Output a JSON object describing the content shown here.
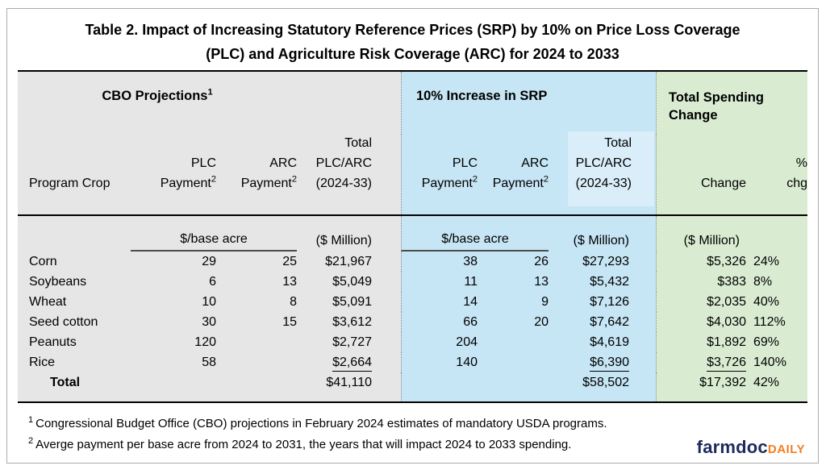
{
  "title": {
    "line1": "Table 2. Impact of Increasing Statutory Reference Prices (SRP) by 10% on Price Loss Coverage",
    "line2": "(PLC) and Agriculture Risk Coverage (ARC) for 2024 to 2033"
  },
  "sections": {
    "cbo_title": "CBO Projections",
    "cbo_sup": "1",
    "srp_title": "10% Increase in SRP",
    "change_title_line1": "Total Spending",
    "change_title_line2": "Change"
  },
  "header": {
    "program_crop": "Program Crop",
    "plc": "PLC",
    "arc": "ARC",
    "payment": "Payment",
    "payment_sup": "2",
    "total": "Total",
    "plc_arc": "PLC/ARC",
    "years": "(2024-33)",
    "change": "Change",
    "pct": "%",
    "chg": "chg"
  },
  "subheader": {
    "base_acre": "$/base acre",
    "million": "($ Million)"
  },
  "rows": [
    {
      "crop": "Corn",
      "cbo_plc": "29",
      "cbo_arc": "25",
      "cbo_total": "$21,967",
      "srp_plc": "38",
      "srp_arc": "26",
      "srp_total": "$27,293",
      "change": "$5,326",
      "pct": "24%"
    },
    {
      "crop": "Soybeans",
      "cbo_plc": "6",
      "cbo_arc": "13",
      "cbo_total": "$5,049",
      "srp_plc": "11",
      "srp_arc": "13",
      "srp_total": "$5,432",
      "change": "$383",
      "pct": "8%"
    },
    {
      "crop": "Wheat",
      "cbo_plc": "10",
      "cbo_arc": "8",
      "cbo_total": "$5,091",
      "srp_plc": "14",
      "srp_arc": "9",
      "srp_total": "$7,126",
      "change": "$2,035",
      "pct": "40%"
    },
    {
      "crop": "Seed cotton",
      "cbo_plc": "30",
      "cbo_arc": "15",
      "cbo_total": "$3,612",
      "srp_plc": "66",
      "srp_arc": "20",
      "srp_total": "$7,642",
      "change": "$4,030",
      "pct": "112%"
    },
    {
      "crop": "Peanuts",
      "cbo_plc": "120",
      "cbo_arc": "",
      "cbo_total": "$2,727",
      "srp_plc": "204",
      "srp_arc": "",
      "srp_total": "$4,619",
      "change": "$1,892",
      "pct": "69%"
    },
    {
      "crop": "Rice",
      "cbo_plc": "58",
      "cbo_arc": "",
      "cbo_total": "$2,664",
      "srp_plc": "140",
      "srp_arc": "",
      "srp_total": "$6,390",
      "change": "$3,726",
      "pct": "140%"
    }
  ],
  "total": {
    "label": "Total",
    "cbo_total": "$41,110",
    "srp_total": "$58,502",
    "change": "$17,392",
    "pct": "42%"
  },
  "footnotes": [
    {
      "marker": "1",
      "text": "Congressional Budget Office (CBO) projections in February 2024 estimates of mandatory USDA programs."
    },
    {
      "marker": "2",
      "text": "Averge payment per base acre from 2024 to 2031, the years that will impact 2024 to 2033 spending."
    }
  ],
  "logo": {
    "farmdoc": "farmdoc",
    "daily": "DAILY"
  },
  "colors": {
    "section_gray": "#e6e6e6",
    "section_blue": "#c6e5f5",
    "blue_highlight": "#d9eef9",
    "section_green": "#d9ecd2",
    "logo_navy": "#1f2a5e",
    "logo_orange": "#f47d21"
  },
  "chart_data": {
    "type": "table",
    "title": "Table 2. Impact of Increasing Statutory Reference Prices (SRP) by 10% on Price Loss Coverage (PLC) and Agriculture Risk Coverage (ARC) for 2024 to 2033",
    "column_groups": [
      "CBO Projections",
      "10% Increase in SRP",
      "Total Spending Change"
    ],
    "columns": [
      "Program Crop",
      "CBO PLC Payment ($/base acre)",
      "CBO ARC Payment ($/base acre)",
      "CBO Total PLC/ARC 2024-33 ($ Million)",
      "SRP PLC Payment ($/base acre)",
      "SRP ARC Payment ($/base acre)",
      "SRP Total PLC/ARC 2024-33 ($ Million)",
      "Spending Change ($ Million)",
      "% chg"
    ],
    "rows": [
      [
        "Corn",
        29,
        25,
        21967,
        38,
        26,
        27293,
        5326,
        "24%"
      ],
      [
        "Soybeans",
        6,
        13,
        5049,
        11,
        13,
        5432,
        383,
        "8%"
      ],
      [
        "Wheat",
        10,
        8,
        5091,
        14,
        9,
        7126,
        2035,
        "40%"
      ],
      [
        "Seed cotton",
        30,
        15,
        3612,
        66,
        20,
        7642,
        4030,
        "112%"
      ],
      [
        "Peanuts",
        120,
        null,
        2727,
        204,
        null,
        4619,
        1892,
        "69%"
      ],
      [
        "Rice",
        58,
        null,
        2664,
        140,
        null,
        6390,
        3726,
        "140%"
      ],
      [
        "Total",
        null,
        null,
        41110,
        null,
        null,
        58502,
        17392,
        "42%"
      ]
    ]
  }
}
